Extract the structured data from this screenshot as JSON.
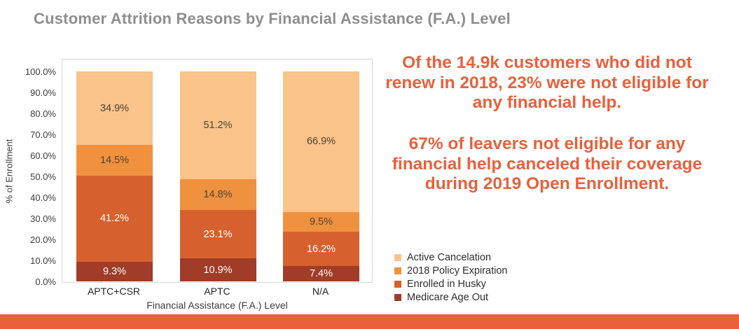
{
  "page": {
    "title": "Customer Attrition Reasons by Financial Assistance (F.A.) Level"
  },
  "colors": {
    "title_gray": "#8E8E8E",
    "accent_orange": "#E8603C",
    "footer_bar": "#E8613C",
    "plot_border": "#D8D8D8"
  },
  "chart_data": {
    "type": "bar",
    "stacked": true,
    "categories": [
      "APTC+CSR",
      "APTC",
      "N/A"
    ],
    "series": [
      {
        "name": "Medicare Age Out",
        "color": "#A03C28",
        "label_color": "#FFFFFF",
        "values": [
          9.3,
          10.9,
          7.4
        ]
      },
      {
        "name": "Enrolled in Husky",
        "color": "#D6612E",
        "label_color": "#FFFFFF",
        "values": [
          41.2,
          23.1,
          16.2
        ]
      },
      {
        "name": "2018 Policy Expiration",
        "color": "#F0913F",
        "label_color": "#4D4334",
        "values": [
          14.5,
          14.8,
          9.5
        ]
      },
      {
        "name": "Active Cancelation",
        "color": "#F9C38A",
        "label_color": "#4D4334",
        "values": [
          34.9,
          51.2,
          66.9
        ]
      }
    ],
    "ylabel": "% of Enrollment",
    "xlabel": "Financial Assistance (F.A.) Level",
    "ylim": [
      0,
      100
    ],
    "ytick_step": 10,
    "ytick_suffix": "%",
    "value_suffix": "%",
    "grid": false,
    "legend_position": "right-bottom",
    "legend_order_reversed": true
  },
  "annotation": {
    "paragraph1": "Of the 14.9k customers who did not renew in 2018, 23% were not eligible for any financial help.",
    "paragraph2": "67% of leavers not eligible for any financial help canceled their coverage during 2019 Open Enrollment."
  }
}
